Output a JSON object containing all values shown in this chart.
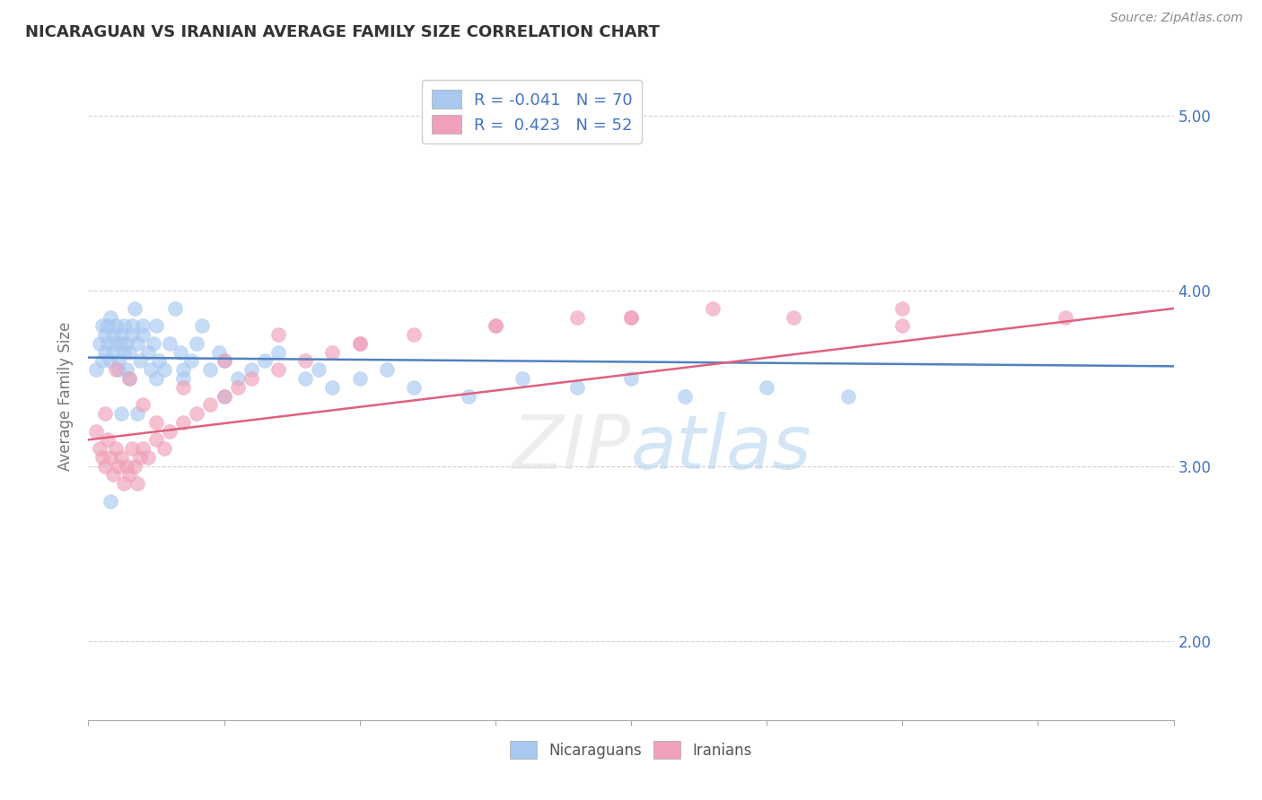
{
  "title": "NICARAGUAN VS IRANIAN AVERAGE FAMILY SIZE CORRELATION CHART",
  "source": "Source: ZipAtlas.com",
  "ylabel": "Average Family Size",
  "right_yticks": [
    2.0,
    3.0,
    4.0,
    5.0
  ],
  "xmin": 0.0,
  "xmax": 0.4,
  "ymin": 1.55,
  "ymax": 5.25,
  "nicaraguan_R": "-0.041",
  "nicaraguan_N": "70",
  "iranian_R": "0.423",
  "iranian_N": "52",
  "blue_color": "#A8C8F0",
  "pink_color": "#F0A0B8",
  "blue_line_color": "#5080C0",
  "pink_line_color": "#E06080",
  "nic_x": [
    0.003,
    0.004,
    0.005,
    0.005,
    0.006,
    0.006,
    0.007,
    0.007,
    0.008,
    0.008,
    0.009,
    0.009,
    0.01,
    0.01,
    0.011,
    0.011,
    0.012,
    0.012,
    0.013,
    0.013,
    0.014,
    0.014,
    0.015,
    0.015,
    0.016,
    0.016,
    0.017,
    0.018,
    0.019,
    0.02,
    0.02,
    0.022,
    0.023,
    0.024,
    0.025,
    0.026,
    0.028,
    0.03,
    0.032,
    0.034,
    0.035,
    0.038,
    0.04,
    0.042,
    0.045,
    0.048,
    0.05,
    0.055,
    0.06,
    0.065,
    0.07,
    0.08,
    0.085,
    0.09,
    0.1,
    0.11,
    0.12,
    0.14,
    0.16,
    0.18,
    0.2,
    0.22,
    0.25,
    0.28,
    0.008,
    0.012,
    0.018,
    0.025,
    0.035,
    0.05
  ],
  "nic_y": [
    3.55,
    3.7,
    3.6,
    3.8,
    3.65,
    3.75,
    3.7,
    3.8,
    3.85,
    3.6,
    3.75,
    3.65,
    3.7,
    3.8,
    3.6,
    3.55,
    3.7,
    3.75,
    3.65,
    3.8,
    3.7,
    3.55,
    3.65,
    3.5,
    3.75,
    3.8,
    3.9,
    3.7,
    3.6,
    3.75,
    3.8,
    3.65,
    3.55,
    3.7,
    3.8,
    3.6,
    3.55,
    3.7,
    3.9,
    3.65,
    3.55,
    3.6,
    3.7,
    3.8,
    3.55,
    3.65,
    3.6,
    3.5,
    3.55,
    3.6,
    3.65,
    3.5,
    3.55,
    3.45,
    3.5,
    3.55,
    3.45,
    3.4,
    3.5,
    3.45,
    3.5,
    3.4,
    3.45,
    3.4,
    2.8,
    3.3,
    3.3,
    3.5,
    3.5,
    3.4
  ],
  "iran_x": [
    0.003,
    0.004,
    0.005,
    0.006,
    0.007,
    0.008,
    0.009,
    0.01,
    0.011,
    0.012,
    0.013,
    0.014,
    0.015,
    0.016,
    0.017,
    0.018,
    0.019,
    0.02,
    0.022,
    0.025,
    0.028,
    0.03,
    0.035,
    0.04,
    0.045,
    0.05,
    0.055,
    0.06,
    0.07,
    0.08,
    0.09,
    0.1,
    0.12,
    0.15,
    0.18,
    0.2,
    0.23,
    0.26,
    0.3,
    0.36,
    0.006,
    0.01,
    0.015,
    0.02,
    0.025,
    0.035,
    0.05,
    0.07,
    0.1,
    0.15,
    0.2,
    0.3
  ],
  "iran_y": [
    3.2,
    3.1,
    3.05,
    3.0,
    3.15,
    3.05,
    2.95,
    3.1,
    3.0,
    3.05,
    2.9,
    3.0,
    2.95,
    3.1,
    3.0,
    2.9,
    3.05,
    3.1,
    3.05,
    3.15,
    3.1,
    3.2,
    3.25,
    3.3,
    3.35,
    3.4,
    3.45,
    3.5,
    3.55,
    3.6,
    3.65,
    3.7,
    3.75,
    3.8,
    3.85,
    3.85,
    3.9,
    3.85,
    3.8,
    3.85,
    3.3,
    3.55,
    3.5,
    3.35,
    3.25,
    3.45,
    3.6,
    3.75,
    3.7,
    3.8,
    3.85,
    3.9
  ]
}
